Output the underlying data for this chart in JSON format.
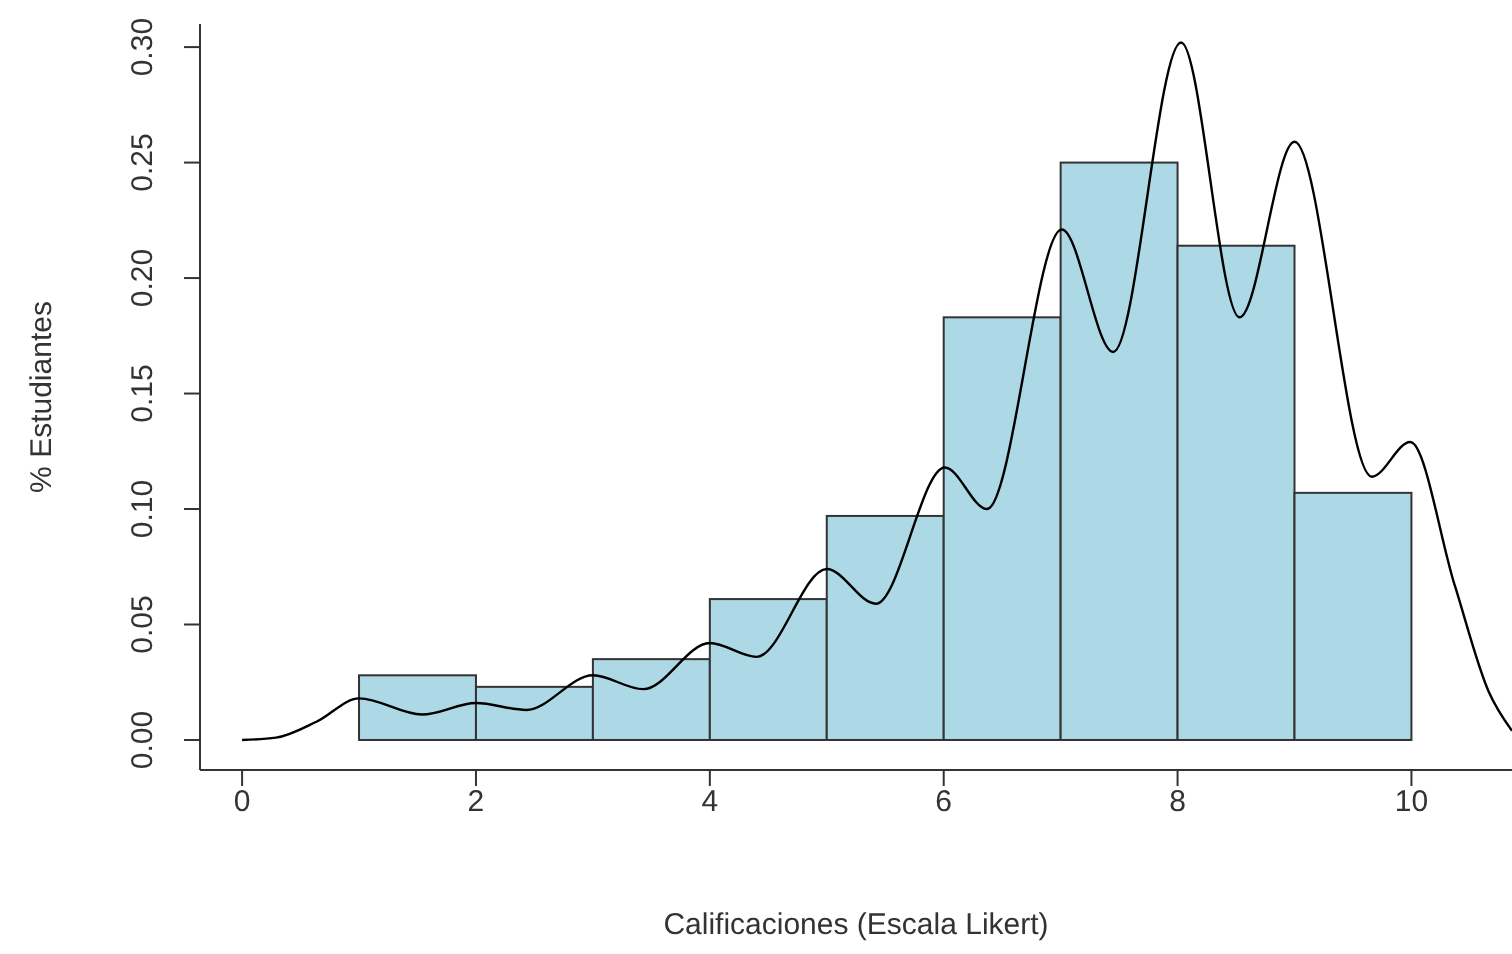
{
  "chart_data": {
    "type": "histogram",
    "xlabel": "Calificaciones (Escala Likert)",
    "ylabel": "% Estudiantes",
    "bins": [
      1,
      2,
      3,
      4,
      5,
      6,
      7,
      8,
      9,
      10
    ],
    "series": [
      {
        "type": "histogram",
        "color": "#add8e6",
        "values": [
          0.028,
          0.023,
          0.035,
          0.061,
          0.097,
          0.183,
          0.25,
          0.214,
          0.107
        ]
      },
      {
        "type": "line",
        "color": "#000000",
        "x": [
          0,
          0.29,
          0.64,
          1.0,
          1.54,
          2.0,
          2.43,
          3.0,
          3.43,
          4.0,
          4.4,
          5.0,
          5.42,
          6.01,
          6.37,
          7.01,
          7.45,
          8.03,
          8.53,
          9.0,
          9.66,
          9.99,
          10.37,
          10.66,
          10.86
        ],
        "values": [
          0,
          0.001,
          0.008,
          0.018,
          0.011,
          0.016,
          0.013,
          0.028,
          0.022,
          0.042,
          0.036,
          0.074,
          0.059,
          0.118,
          0.1,
          0.221,
          0.168,
          0.302,
          0.183,
          0.259,
          0.114,
          0.129,
          0.067,
          0.021,
          0.004
        ]
      }
    ],
    "xlim": [
      -0.36,
      10.86
    ],
    "xticks": [
      0,
      2,
      4,
      6,
      8,
      10
    ],
    "ylim": [
      -0.013,
      0.31
    ],
    "yticks": [
      {
        "value": 0,
        "label": "0.00"
      },
      {
        "value": 0.05,
        "label": "0.05"
      },
      {
        "value": 0.1,
        "label": "0.10"
      },
      {
        "value": 0.15,
        "label": "0.15"
      },
      {
        "value": 0.2,
        "label": "0.20"
      },
      {
        "value": 0.25,
        "label": "0.25"
      },
      {
        "value": 0.3,
        "label": "0.30"
      }
    ],
    "grid": false,
    "legend": false,
    "marker": "none",
    "line_style": "solid"
  }
}
